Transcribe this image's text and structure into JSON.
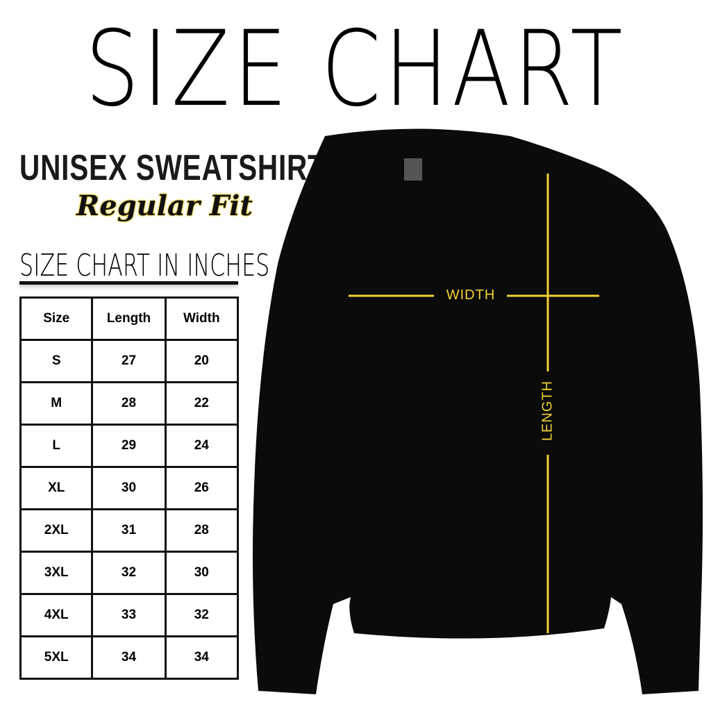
{
  "title": "SIZE CHART",
  "product": "UNISEX SWEATSHIRT",
  "fit": "Regular Fit",
  "chart_heading": "SIZE CHART IN INCHES",
  "table": {
    "headers": [
      "Size",
      "Length",
      "Width"
    ],
    "rows": [
      [
        "S",
        "27",
        "20"
      ],
      [
        "M",
        "28",
        "22"
      ],
      [
        "L",
        "29",
        "24"
      ],
      [
        "XL",
        "30",
        "26"
      ],
      [
        "2XL",
        "31",
        "28"
      ],
      [
        "3XL",
        "32",
        "30"
      ],
      [
        "4XL",
        "33",
        "32"
      ],
      [
        "5XL",
        "34",
        "34"
      ]
    ]
  },
  "diagram": {
    "width_label": "WIDTH",
    "length_label": "LENGTH",
    "line_color": "#f2d233",
    "garment_color": "#0b0b0b"
  }
}
